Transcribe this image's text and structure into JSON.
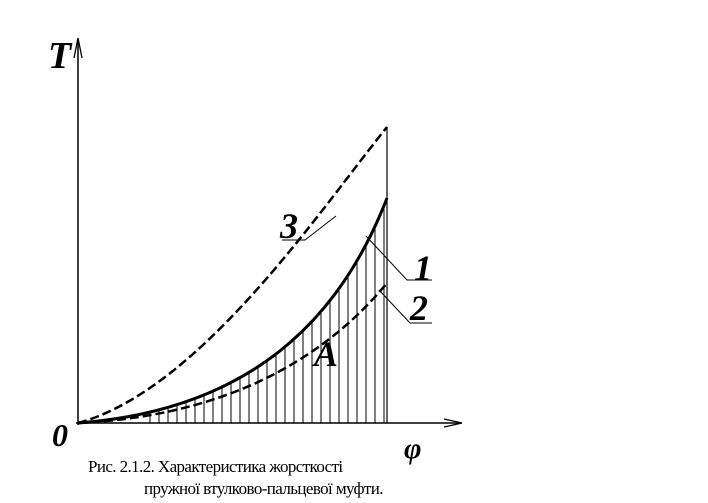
{
  "axes": {
    "y_label": "T",
    "x_label": "φ",
    "origin": "0"
  },
  "curves": [
    {
      "label": "3"
    },
    {
      "label": "1"
    },
    {
      "label": "2"
    }
  ],
  "area_label": "A",
  "caption": [
    "Рис. 2.1.2. Характеристика жорсткості",
    "пружної втулково-пальцевої муфти."
  ]
}
